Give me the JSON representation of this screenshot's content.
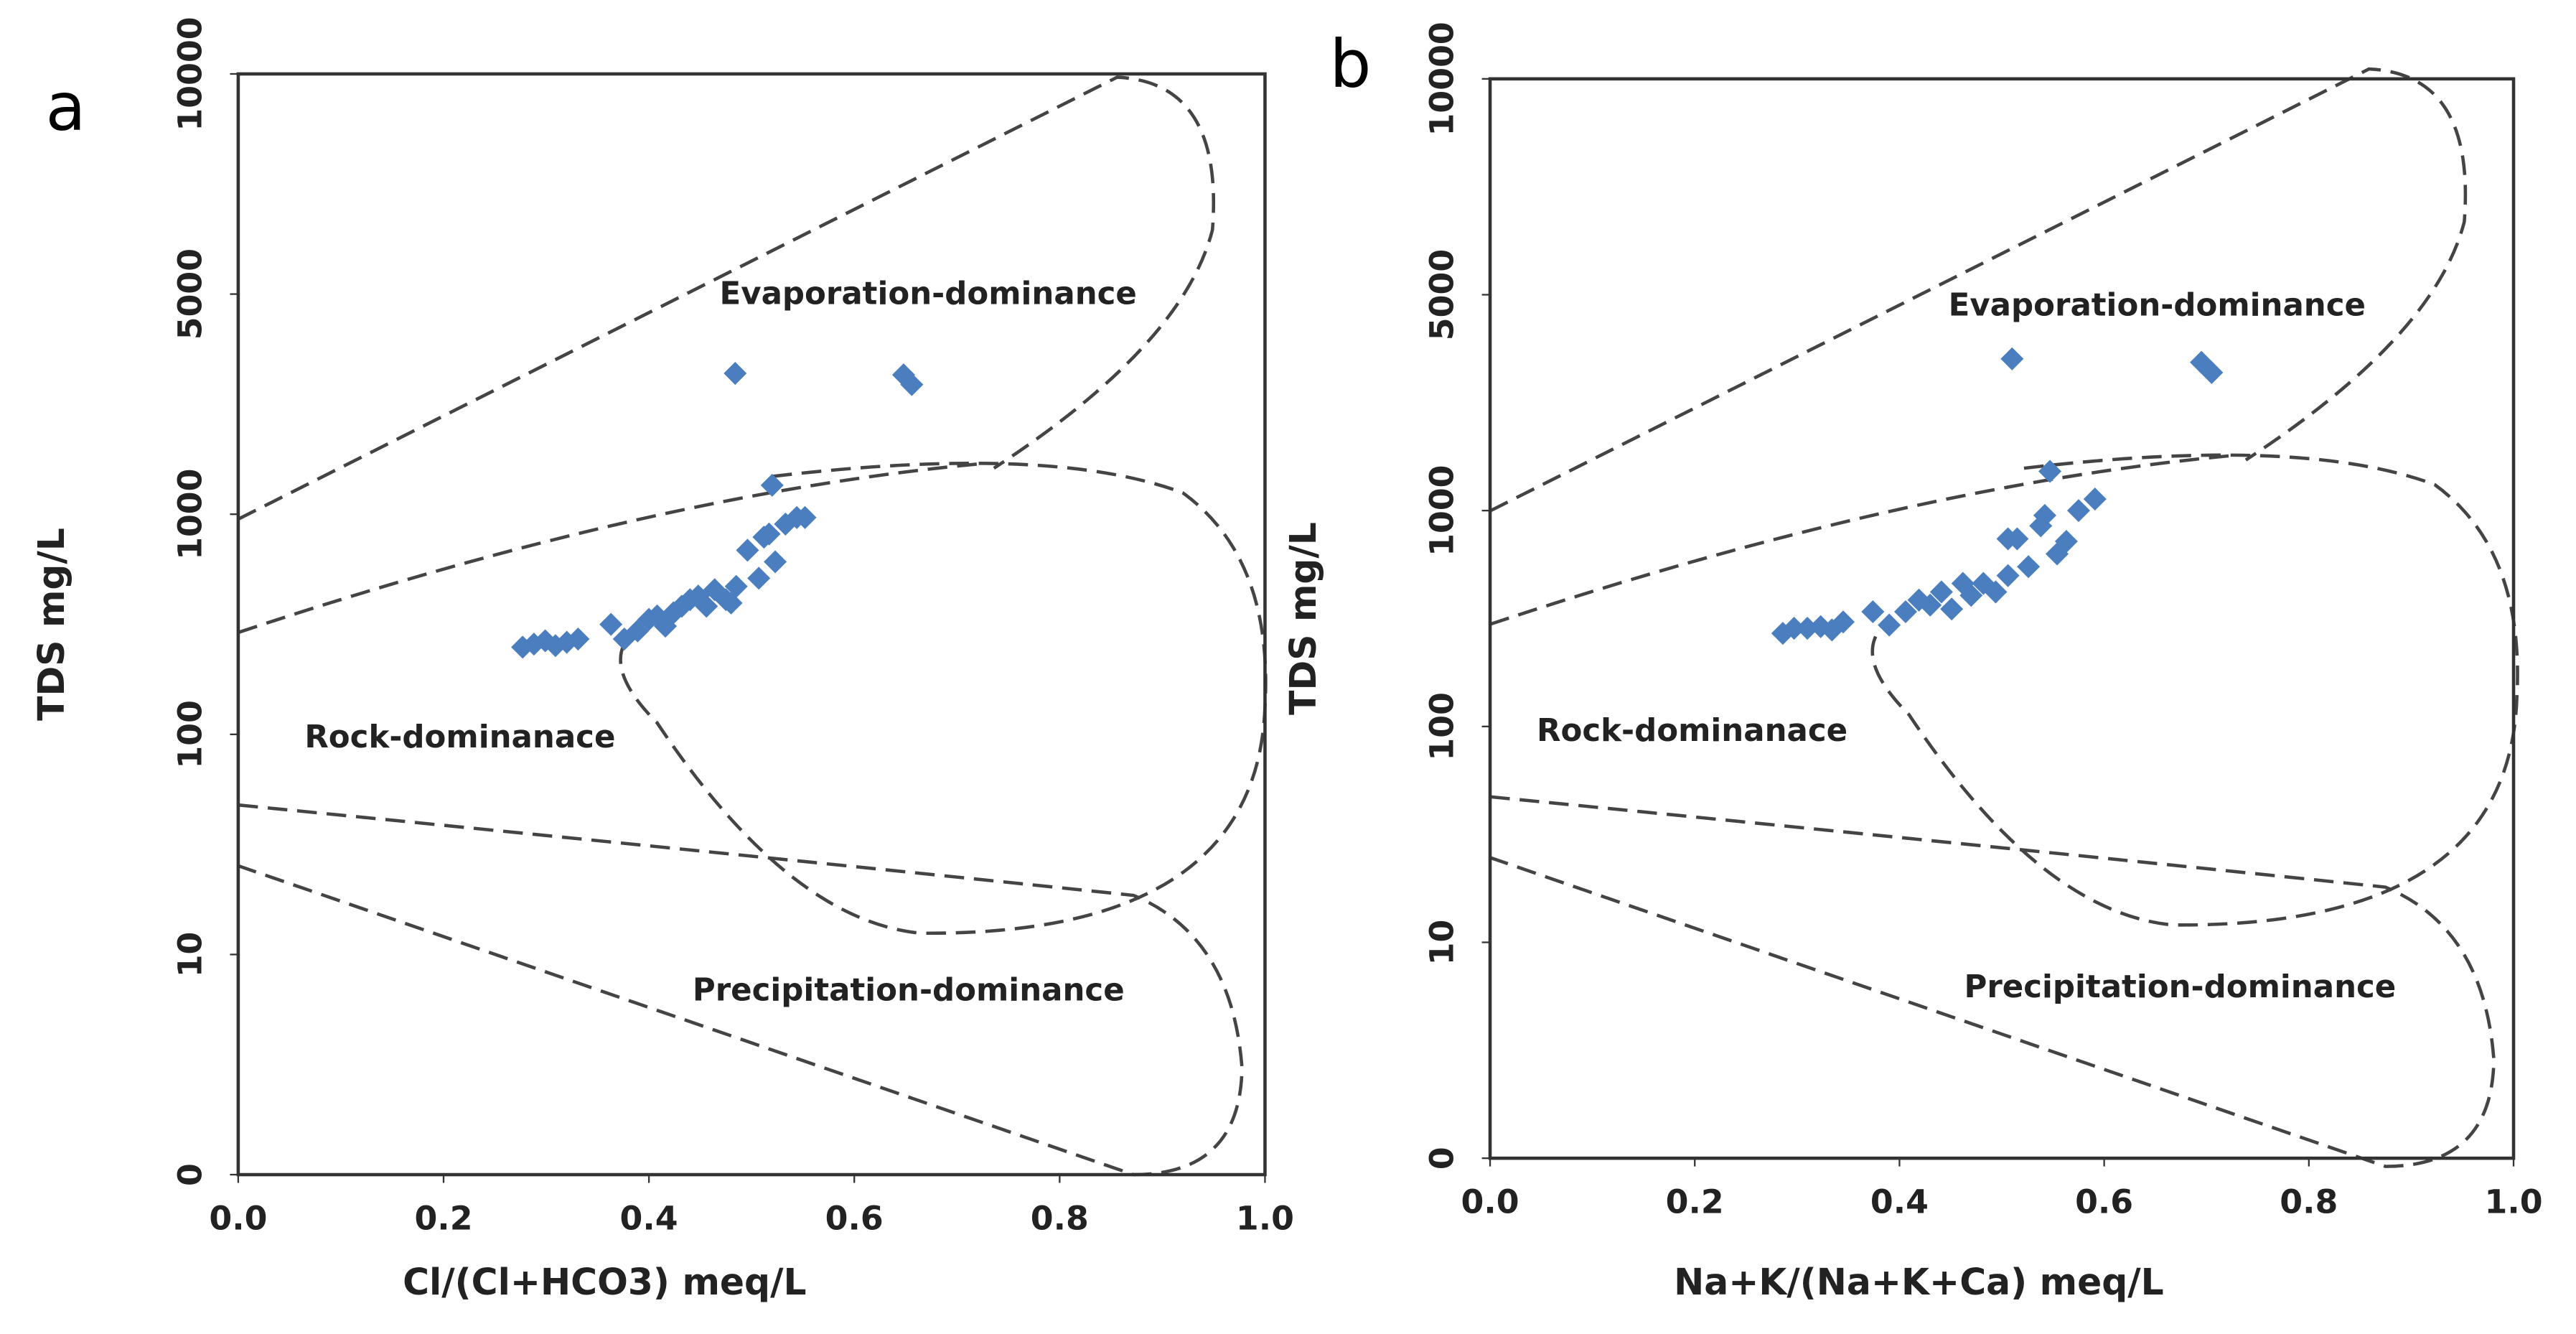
{
  "chart_data": [
    {
      "type": "scatter",
      "title": "a",
      "xlabel": "Cl/(Cl+HCO3) meq/L",
      "ylabel": "TDS mg/L",
      "annotations": [
        "Evaporation-dominance",
        "Rock-dominanace",
        "Precipitation-dominance"
      ],
      "color": "#4a7ebf",
      "xlim": [
        0,
        1
      ],
      "xticks": [
        {
          "value": 0,
          "label": "0.0"
        },
        0.2,
        0.4,
        0.6,
        0.8,
        {
          "value": 1,
          "label": "1.0"
        }
      ],
      "ylim": [
        0,
        10000
      ],
      "yticks": [
        0,
        10,
        100,
        1000,
        5000,
        10000
      ],
      "x": [
        0.277,
        0.288,
        0.299,
        0.309,
        0.32,
        0.331,
        0.363,
        0.376,
        0.389,
        0.4,
        0.408,
        0.416,
        0.424,
        0.432,
        0.44,
        0.448,
        0.456,
        0.464,
        0.475,
        0.485,
        0.496,
        0.507,
        0.517,
        0.523,
        0.52,
        0.533,
        0.544,
        0.552,
        0.512,
        0.48,
        0.484,
        0.648,
        0.656
      ],
      "values": [
        249,
        257,
        266,
        253,
        262,
        271,
        316,
        271,
        295,
        333,
        345,
        310,
        357,
        382,
        409,
        425,
        382,
        454,
        409,
        470,
        686,
        512,
        813,
        608,
        1236,
        902,
        966,
        966,
        787,
        395,
        2800,
        2770,
        2580
      ]
    },
    {
      "type": "scatter",
      "title": "b",
      "xlabel": "Na+K/(Na+K+Ca)  meq/L",
      "ylabel": "TDS mg/L",
      "annotations": [
        "Evaporation-dominance",
        "Rock-dominanace",
        "Precipitation-dominance"
      ],
      "color": "#4a7ebf",
      "xlim": [
        0,
        1
      ],
      "xticks": [
        {
          "value": 0,
          "label": "0.0"
        },
        0.2,
        0.4,
        0.6,
        0.8,
        {
          "value": 1,
          "label": "1.0"
        }
      ],
      "ylim": [
        0,
        10000
      ],
      "yticks": [
        0,
        10,
        100,
        1000,
        5000,
        10000
      ],
      "x": [
        0.286,
        0.297,
        0.31,
        0.323,
        0.334,
        0.345,
        0.374,
        0.39,
        0.406,
        0.419,
        0.43,
        0.441,
        0.451,
        0.462,
        0.47,
        0.482,
        0.494,
        0.506,
        0.515,
        0.526,
        0.538,
        0.547,
        0.554,
        0.563,
        0.575,
        0.591,
        0.506,
        0.542,
        0.51,
        0.695,
        0.705
      ],
      "values": [
        270,
        285,
        285,
        290,
        280,
        305,
        340,
        295,
        340,
        385,
        365,
        420,
        350,
        460,
        405,
        460,
        420,
        500,
        740,
        550,
        850,
        1340,
        630,
        720,
        1000,
        1090,
        740,
        950,
        3100,
        3020,
        2800
      ]
    }
  ]
}
